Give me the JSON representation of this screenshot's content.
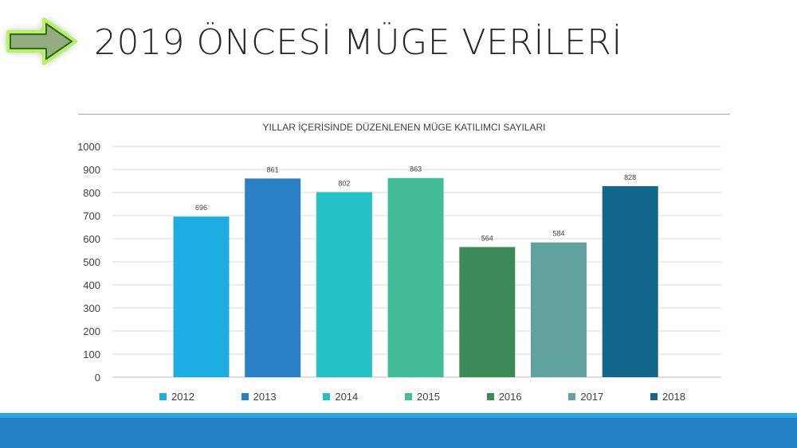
{
  "slide": {
    "title": "2019 ÖNCESİ MÜGE VERİLERİ"
  },
  "chart_data": {
    "type": "bar",
    "title": "YILLAR İÇERİSİNDE DÜZENLENEN MÜGE KATILIMCI SAYILARI",
    "categories": [
      "2012",
      "2013",
      "2014",
      "2015",
      "2016",
      "2017",
      "2018"
    ],
    "values": [
      696,
      861,
      802,
      863,
      564,
      584,
      828
    ],
    "colors": [
      "#1eade2",
      "#2980c5",
      "#24c2c8",
      "#43bc9a",
      "#3d8a56",
      "#61a39f",
      "#14668a"
    ],
    "ylim": [
      0,
      1000
    ],
    "yticks": [
      0,
      100,
      200,
      300,
      400,
      500,
      600,
      700,
      800,
      900,
      1000
    ],
    "xlabel": "",
    "ylabel": "",
    "grid": true,
    "legend": "bottom"
  }
}
